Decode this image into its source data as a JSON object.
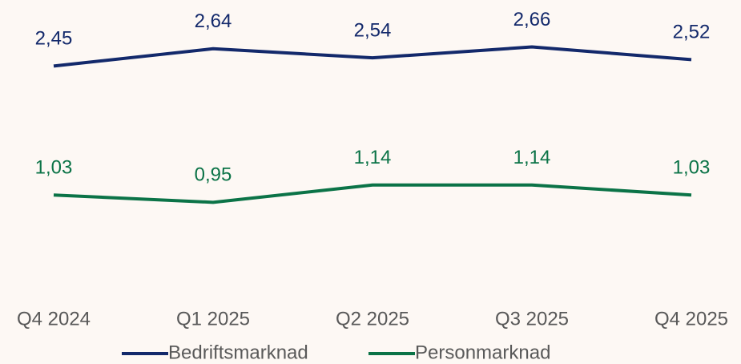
{
  "chart_data": {
    "type": "line",
    "categories": [
      "Q4 2024",
      "Q1 2025",
      "Q2 2025",
      "Q3 2025",
      "Q4 2025"
    ],
    "series": [
      {
        "name": "Bedriftsmarknad",
        "color": "#13296b",
        "values": [
          2.45,
          2.64,
          2.54,
          2.66,
          2.52
        ],
        "value_labels": [
          "2,45",
          "2,64",
          "2,54",
          "2,66",
          "2,52"
        ]
      },
      {
        "name": "Personmarknad",
        "color": "#0b7347",
        "values": [
          1.03,
          0.95,
          1.14,
          1.14,
          1.03
        ],
        "value_labels": [
          "1,03",
          "0,95",
          "1,14",
          "1,14",
          "1,03"
        ]
      }
    ],
    "ylim": [
      0,
      3
    ],
    "legend": "bottom"
  }
}
